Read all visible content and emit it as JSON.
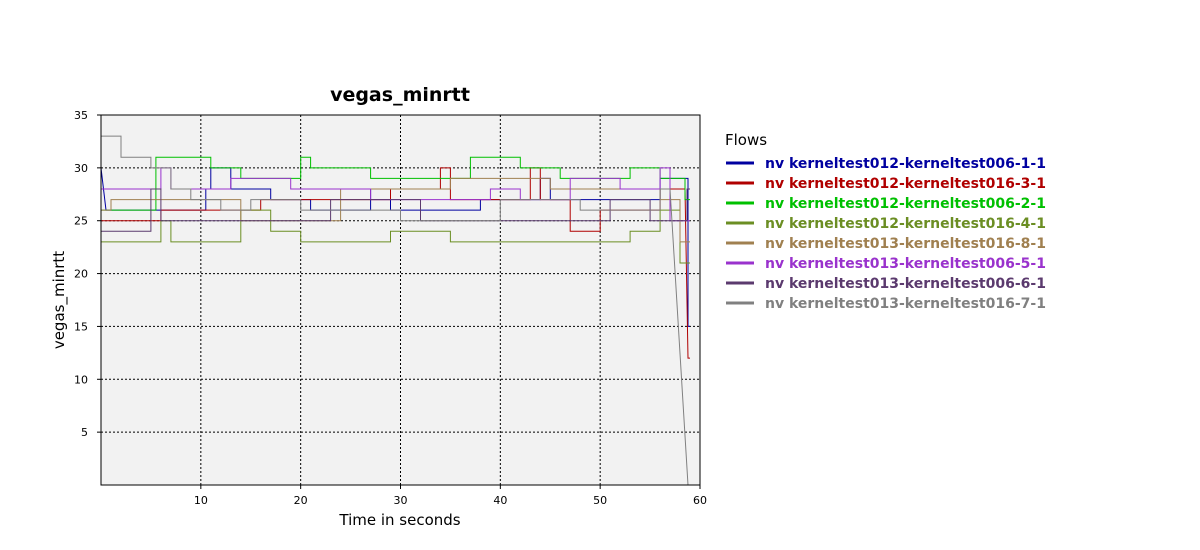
{
  "chart_data": {
    "type": "line",
    "title": "vegas_minrtt",
    "xlabel": "Time in seconds",
    "ylabel": "vegas_minrtt",
    "xlim": [
      0,
      60
    ],
    "ylim": [
      0,
      35
    ],
    "xticks": [
      10,
      20,
      30,
      40,
      50,
      60
    ],
    "yticks": [
      5,
      10,
      15,
      20,
      25,
      30,
      35
    ],
    "grid": true,
    "legend_title": "Flows",
    "legend_position": "right",
    "series": [
      {
        "name": "nv kerneltest012-kerneltest006-1-1",
        "color": "#0000a0",
        "points": [
          [
            0,
            30
          ],
          [
            0.5,
            26
          ],
          [
            10.5,
            26
          ],
          [
            10.5,
            28
          ],
          [
            11,
            28
          ],
          [
            11,
            30
          ],
          [
            13,
            30
          ],
          [
            13,
            28
          ],
          [
            17,
            28
          ],
          [
            17,
            27
          ],
          [
            21,
            27
          ],
          [
            21,
            26
          ],
          [
            27,
            26
          ],
          [
            27,
            28
          ],
          [
            29,
            28
          ],
          [
            29,
            26
          ],
          [
            38,
            26
          ],
          [
            38,
            27
          ],
          [
            44,
            27
          ],
          [
            44,
            29
          ],
          [
            45,
            29
          ],
          [
            45,
            27
          ],
          [
            56,
            27
          ],
          [
            56,
            29
          ],
          [
            58.8,
            29
          ],
          [
            58.8,
            15
          ],
          [
            59,
            15
          ]
        ]
      },
      {
        "name": "nv kerneltest012-kerneltest016-3-1",
        "color": "#b00000",
        "points": [
          [
            0,
            25
          ],
          [
            6,
            25
          ],
          [
            6,
            26
          ],
          [
            16,
            26
          ],
          [
            16,
            27
          ],
          [
            29,
            27
          ],
          [
            29,
            28
          ],
          [
            34,
            28
          ],
          [
            34,
            30
          ],
          [
            35,
            30
          ],
          [
            35,
            27
          ],
          [
            43,
            27
          ],
          [
            43,
            30
          ],
          [
            44,
            30
          ],
          [
            44,
            27
          ],
          [
            47,
            27
          ],
          [
            47,
            24
          ],
          [
            50,
            24
          ],
          [
            50,
            26
          ],
          [
            56,
            26
          ],
          [
            56,
            28
          ],
          [
            58.5,
            28
          ],
          [
            58.8,
            12
          ],
          [
            59,
            12
          ]
        ]
      },
      {
        "name": "nv kerneltest012-kerneltest006-2-1",
        "color": "#00c000",
        "points": [
          [
            0,
            26
          ],
          [
            5.5,
            26
          ],
          [
            5.5,
            31
          ],
          [
            11,
            31
          ],
          [
            11,
            30
          ],
          [
            14,
            30
          ],
          [
            14,
            29
          ],
          [
            20,
            29
          ],
          [
            20,
            31
          ],
          [
            21,
            31
          ],
          [
            21,
            30
          ],
          [
            27,
            30
          ],
          [
            27,
            29
          ],
          [
            37,
            29
          ],
          [
            37,
            31
          ],
          [
            42,
            31
          ],
          [
            42,
            30
          ],
          [
            46,
            30
          ],
          [
            46,
            29
          ],
          [
            53,
            29
          ],
          [
            53,
            30
          ],
          [
            56,
            30
          ],
          [
            56,
            29
          ],
          [
            58.5,
            29
          ],
          [
            58.5,
            27
          ],
          [
            59,
            27
          ]
        ]
      },
      {
        "name": "nv kerneltest012-kerneltest016-4-1",
        "color": "#6b8e23",
        "points": [
          [
            0,
            23
          ],
          [
            6,
            23
          ],
          [
            6,
            25
          ],
          [
            7,
            25
          ],
          [
            7,
            23
          ],
          [
            14,
            23
          ],
          [
            14,
            26
          ],
          [
            16,
            26
          ],
          [
            16,
            26
          ],
          [
            17,
            26
          ],
          [
            17,
            24
          ],
          [
            20,
            24
          ],
          [
            20,
            23
          ],
          [
            29,
            23
          ],
          [
            29,
            24
          ],
          [
            35,
            24
          ],
          [
            35,
            23
          ],
          [
            53,
            23
          ],
          [
            53,
            24
          ],
          [
            56,
            24
          ],
          [
            56,
            26
          ],
          [
            58,
            26
          ],
          [
            58,
            21
          ],
          [
            59,
            21
          ]
        ]
      },
      {
        "name": "nv kerneltest013-kerneltest016-8-1",
        "color": "#a08050",
        "points": [
          [
            0,
            26
          ],
          [
            1,
            26
          ],
          [
            1,
            27
          ],
          [
            14,
            27
          ],
          [
            14,
            25
          ],
          [
            24,
            25
          ],
          [
            24,
            28
          ],
          [
            35,
            28
          ],
          [
            35,
            29
          ],
          [
            45,
            29
          ],
          [
            45,
            28
          ],
          [
            56,
            28
          ],
          [
            56,
            27
          ],
          [
            58,
            27
          ],
          [
            58,
            23
          ],
          [
            59,
            23
          ]
        ]
      },
      {
        "name": "nv kerneltest013-kerneltest006-5-1",
        "color": "#9a32cd",
        "points": [
          [
            0,
            28
          ],
          [
            6,
            28
          ],
          [
            6,
            30
          ],
          [
            7,
            30
          ],
          [
            7,
            28
          ],
          [
            13,
            28
          ],
          [
            13,
            29
          ],
          [
            19,
            29
          ],
          [
            19,
            28
          ],
          [
            27,
            28
          ],
          [
            27,
            27
          ],
          [
            39,
            27
          ],
          [
            39,
            28
          ],
          [
            42,
            28
          ],
          [
            42,
            27
          ],
          [
            47,
            27
          ],
          [
            47,
            29
          ],
          [
            52,
            29
          ],
          [
            52,
            28
          ],
          [
            56,
            28
          ],
          [
            56,
            30
          ],
          [
            57,
            30
          ],
          [
            57,
            25
          ],
          [
            59,
            25
          ]
        ]
      },
      {
        "name": "nv kerneltest013-kerneltest006-6-1",
        "color": "#5b3a6e",
        "points": [
          [
            0,
            24
          ],
          [
            5,
            24
          ],
          [
            5,
            28
          ],
          [
            6,
            28
          ],
          [
            6,
            25
          ],
          [
            19,
            25
          ],
          [
            19,
            25
          ],
          [
            23,
            25
          ],
          [
            23,
            27
          ],
          [
            32,
            27
          ],
          [
            32,
            25
          ],
          [
            51,
            25
          ],
          [
            51,
            27
          ],
          [
            55,
            27
          ],
          [
            55,
            25
          ],
          [
            58.7,
            25
          ],
          [
            58.7,
            28
          ],
          [
            59,
            28
          ]
        ]
      },
      {
        "name": "nv kerneltest013-kerneltest016-7-1",
        "color": "#808080",
        "points": [
          [
            0,
            33
          ],
          [
            2,
            33
          ],
          [
            2,
            31
          ],
          [
            5,
            31
          ],
          [
            5,
            30
          ],
          [
            7,
            30
          ],
          [
            7,
            28
          ],
          [
            9,
            28
          ],
          [
            9,
            27
          ],
          [
            12,
            27
          ],
          [
            12,
            26
          ],
          [
            15,
            26
          ],
          [
            15,
            27
          ],
          [
            20,
            27
          ],
          [
            20,
            26
          ],
          [
            30,
            26
          ],
          [
            30,
            25
          ],
          [
            40,
            25
          ],
          [
            40,
            27
          ],
          [
            48,
            27
          ],
          [
            48,
            26
          ],
          [
            56,
            26
          ],
          [
            56,
            28
          ],
          [
            57,
            28
          ],
          [
            58.8,
            0
          ],
          [
            59,
            0
          ]
        ]
      }
    ]
  }
}
